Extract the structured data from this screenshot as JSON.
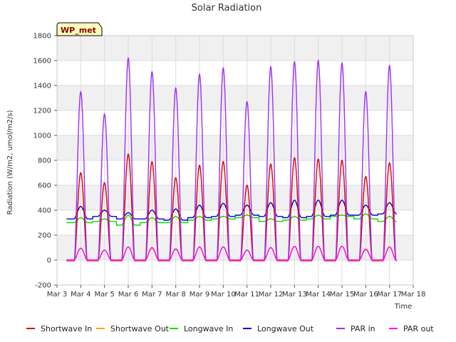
{
  "chart_data": {
    "type": "line",
    "title": "Solar Radiation",
    "xlabel": "Time",
    "ylabel": "Radiation (W/m2, umol/m2/s)",
    "station_label": "WP_met",
    "ylim": [
      -200,
      1800
    ],
    "yticks": [
      -200,
      0,
      200,
      400,
      600,
      800,
      1000,
      1200,
      1400,
      1600,
      1800
    ],
    "xlim": [
      3,
      18
    ],
    "xticks": [
      3,
      4,
      5,
      6,
      7,
      8,
      9,
      10,
      11,
      12,
      13,
      14,
      15,
      16,
      17,
      18
    ],
    "xtick_labels": [
      "Mar 3",
      "Mar 4",
      "Mar 5",
      "Mar 6",
      "Mar 7",
      "Mar 8",
      "Mar 9",
      "Mar 10",
      "Mar 11",
      "Mar 12",
      "Mar 13",
      "Mar 14",
      "Mar 15",
      "Mar 16",
      "Mar 17",
      "Mar 18"
    ],
    "grid": true,
    "background_bands": true,
    "legend_position": "bottom",
    "days": [
      4,
      5,
      6,
      7,
      8,
      9,
      10,
      11,
      12,
      13,
      14,
      15,
      16,
      17
    ],
    "series": [
      {
        "name": "Shortwave In",
        "color": "#dd0000",
        "kind": "peaks",
        "values": [
          700,
          620,
          850,
          790,
          660,
          760,
          790,
          600,
          770,
          820,
          810,
          800,
          670,
          780
        ],
        "night": -5
      },
      {
        "name": "Shortwave Out",
        "color": "#ffa500",
        "kind": "peaks",
        "values": [
          95,
          80,
          105,
          95,
          85,
          105,
          105,
          80,
          100,
          110,
          110,
          110,
          90,
          105
        ],
        "night": 0
      },
      {
        "name": "Longwave In",
        "color": "#00dd00",
        "kind": "baseline",
        "values": [
          300,
          310,
          280,
          300,
          300,
          320,
          330,
          340,
          310,
          320,
          330,
          350,
          330,
          310
        ],
        "day_values": [
          340,
          330,
          360,
          340,
          350,
          350,
          350,
          360,
          330,
          350,
          360,
          360,
          370,
          350
        ]
      },
      {
        "name": "Longwave Out",
        "color": "#0000cc",
        "kind": "baseline",
        "values": [
          330,
          350,
          330,
          330,
          320,
          340,
          350,
          360,
          350,
          340,
          350,
          360,
          360,
          370
        ],
        "day_values": [
          430,
          400,
          380,
          400,
          410,
          440,
          455,
          440,
          460,
          480,
          480,
          480,
          440,
          460
        ]
      },
      {
        "name": "PAR in",
        "color": "#9b30ff",
        "kind": "peaks",
        "values": [
          1350,
          1170,
          1620,
          1510,
          1380,
          1490,
          1540,
          1270,
          1550,
          1590,
          1600,
          1580,
          1350,
          1560
        ],
        "night": 0
      },
      {
        "name": "PAR out",
        "color": "#ff00ff",
        "kind": "peaks",
        "values": [
          95,
          80,
          105,
          100,
          90,
          105,
          105,
          80,
          100,
          110,
          110,
          110,
          85,
          105
        ],
        "night": 0
      }
    ]
  }
}
